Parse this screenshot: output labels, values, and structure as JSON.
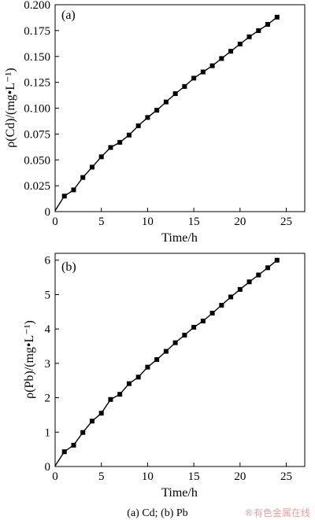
{
  "chart_data": [
    {
      "type": "line",
      "panel_label": "(a)",
      "xlabel": "Time/h",
      "ylabel": "ρ(Cd)/(mg•L⁻¹)",
      "xlim": [
        0,
        27
      ],
      "ylim": [
        0,
        0.2
      ],
      "x_ticks": [
        0,
        5,
        10,
        15,
        20,
        25
      ],
      "x_tick_labels": [
        "0",
        "5",
        "10",
        "15",
        "20",
        "25"
      ],
      "y_ticks": [
        0.0,
        0.025,
        0.05,
        0.075,
        0.1,
        0.125,
        0.15,
        0.175,
        0.2
      ],
      "y_tick_labels": [
        "0",
        "0.025",
        "0.050",
        "0.075",
        "0.100",
        "0.125",
        "0.150",
        "0.175",
        "0.200"
      ],
      "grid": false,
      "x": [
        0,
        1,
        2,
        3,
        4,
        5,
        6,
        7,
        8,
        9,
        10,
        11,
        12,
        13,
        14,
        15,
        16,
        17,
        18,
        19,
        20,
        21,
        22,
        23,
        24
      ],
      "y": [
        0.001,
        0.015,
        0.021,
        0.033,
        0.043,
        0.053,
        0.062,
        0.067,
        0.074,
        0.083,
        0.091,
        0.098,
        0.106,
        0.114,
        0.121,
        0.129,
        0.135,
        0.141,
        0.148,
        0.155,
        0.162,
        0.169,
        0.175,
        0.181,
        0.188
      ]
    },
    {
      "type": "line",
      "panel_label": "(b)",
      "xlabel": "Time/h",
      "ylabel": "ρ(Pb)/(mg•L⁻¹)",
      "xlim": [
        0,
        27
      ],
      "ylim": [
        0,
        6.2
      ],
      "x_ticks": [
        0,
        5,
        10,
        15,
        20,
        25
      ],
      "x_tick_labels": [
        "0",
        "5",
        "10",
        "15",
        "20",
        "25"
      ],
      "y_ticks": [
        0,
        1,
        2,
        3,
        4,
        5,
        6
      ],
      "y_tick_labels": [
        "0",
        "1",
        "2",
        "3",
        "4",
        "5",
        "6"
      ],
      "grid": false,
      "x": [
        0,
        1,
        2,
        3,
        4,
        5,
        6,
        7,
        8,
        9,
        10,
        11,
        12,
        13,
        14,
        15,
        16,
        17,
        18,
        19,
        20,
        21,
        22,
        23,
        24
      ],
      "y": [
        0.02,
        0.43,
        0.62,
        0.99,
        1.32,
        1.55,
        1.95,
        2.1,
        2.41,
        2.6,
        2.89,
        3.11,
        3.35,
        3.6,
        3.82,
        4.05,
        4.23,
        4.46,
        4.69,
        4.93,
        5.15,
        5.37,
        5.57,
        5.78,
        6.0
      ]
    }
  ],
  "caption": "(a) Cd; (b) Pb",
  "watermark": "®有色金属在线"
}
